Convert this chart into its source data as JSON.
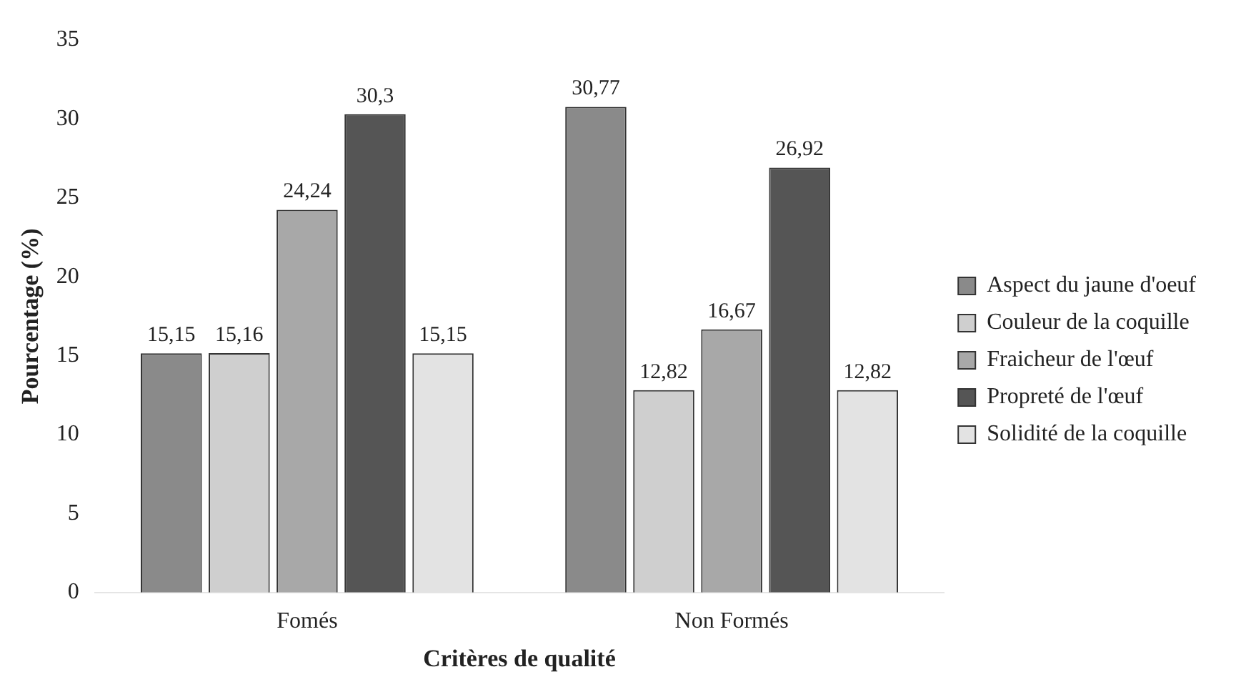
{
  "chart_data": {
    "type": "bar",
    "xlabel": "Critères de qualité",
    "ylabel": "Pourcentage (%)",
    "categories": [
      "Fomés",
      "Non Formés"
    ],
    "series": [
      {
        "name": "Aspect du jaune d'oeuf",
        "color": "#8a8a8a",
        "values": [
          15.15,
          30.77
        ],
        "value_labels": [
          "15,15",
          "30,77"
        ]
      },
      {
        "name": "Couleur de la coquille",
        "color": "#cfcfcf",
        "values": [
          15.16,
          12.82
        ],
        "value_labels": [
          "15,16",
          "12,82"
        ]
      },
      {
        "name": "Fraicheur de l'œuf",
        "color": "#a8a8a8",
        "values": [
          24.24,
          16.67
        ],
        "value_labels": [
          "24,24",
          "16,67"
        ]
      },
      {
        "name": "Propreté de l'œuf",
        "color": "#555555",
        "values": [
          30.3,
          26.92
        ],
        "value_labels": [
          "30,3",
          "26,92"
        ]
      },
      {
        "name": "Solidité de la coquille",
        "color": "#e3e3e3",
        "values": [
          15.15,
          12.82
        ],
        "value_labels": [
          "15,15",
          "12,82"
        ]
      }
    ],
    "ylim": [
      0,
      35
    ],
    "yticks": [
      0,
      5,
      10,
      15,
      20,
      25,
      30,
      35
    ],
    "grid": false,
    "legend": "right"
  }
}
